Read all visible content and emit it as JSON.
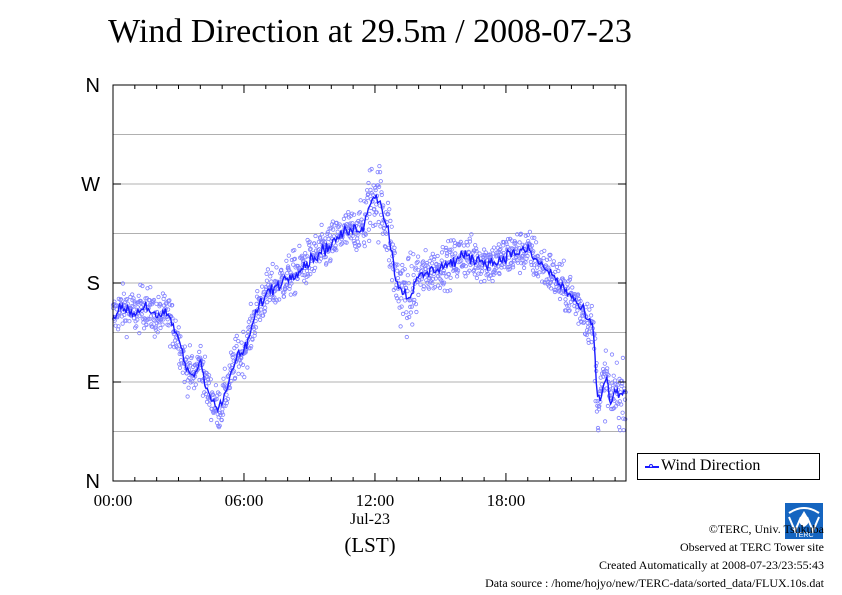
{
  "chart_data": {
    "type": "scatter",
    "title": "Wind Direction at 29.5m / 2008-07-23",
    "x_tick_labels": [
      "00:00",
      "06:00",
      "12:00",
      "18:00"
    ],
    "x_ticks_hours": [
      0,
      6,
      12,
      18
    ],
    "x_date_label": "Jul-23",
    "x_unit_label": "(LST)",
    "xlim_hours": [
      0,
      23.5
    ],
    "y_tick_labels": [
      "N",
      "E",
      "S",
      "W",
      "N"
    ],
    "y_ticks_deg": [
      0,
      90,
      180,
      270,
      360
    ],
    "ylim_deg": [
      0,
      360
    ],
    "grid": true,
    "legend": {
      "position": "right",
      "label": "Wind Direction"
    },
    "colors": {
      "points": "#8080ff",
      "line": "#1a1aff"
    },
    "series": [
      {
        "name": "Wind Direction",
        "hours": [
          0.0,
          0.5,
          1.0,
          1.5,
          2.0,
          2.5,
          3.0,
          3.3,
          3.7,
          4.0,
          4.3,
          4.6,
          4.8,
          5.0,
          5.3,
          5.6,
          6.0,
          6.3,
          6.6,
          7.0,
          7.5,
          8.0,
          8.5,
          9.0,
          9.5,
          10.0,
          10.5,
          11.0,
          11.5,
          11.8,
          12.0,
          12.3,
          12.6,
          13.0,
          13.3,
          13.6,
          14.0,
          14.5,
          15.0,
          15.5,
          16.0,
          16.5,
          17.0,
          17.5,
          18.0,
          18.5,
          19.0,
          19.5,
          20.0,
          20.5,
          21.0,
          21.5,
          22.0,
          22.2,
          22.4,
          22.6,
          22.8,
          23.0,
          23.2,
          23.4
        ],
        "direction_deg": [
          150,
          158,
          152,
          160,
          148,
          152,
          130,
          105,
          95,
          110,
          85,
          72,
          65,
          70,
          90,
          110,
          118,
          135,
          155,
          170,
          178,
          185,
          192,
          200,
          208,
          215,
          225,
          228,
          232,
          255,
          262,
          250,
          228,
          180,
          172,
          168,
          185,
          190,
          195,
          198,
          205,
          202,
          200,
          198,
          205,
          208,
          210,
          198,
          190,
          178,
          168,
          155,
          138,
          72,
          80,
          95,
          70,
          85,
          75,
          82
        ]
      }
    ]
  },
  "legend_label": "Wind Direction",
  "credits": {
    "line1": "©TERC, Univ. Tsukuba",
    "line2": "Observed at TERC Tower site",
    "line3": "Created Automatically at 2008-07-23/23:55:43",
    "line4": "Data source : /home/hojyo/new/TERC-data/sorted_data/FLUX.10s.dat"
  },
  "logo_text": "TERC"
}
